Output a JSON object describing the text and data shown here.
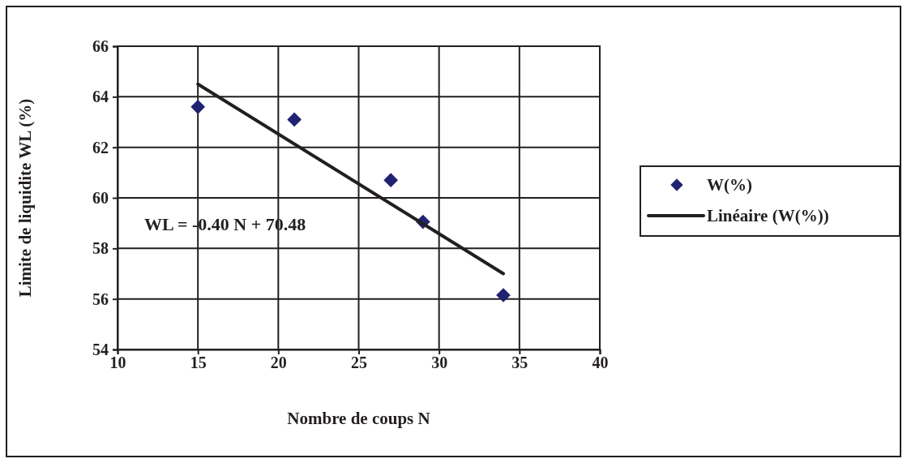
{
  "chart_data": {
    "type": "scatter",
    "xlabel": "Nombre de coups N",
    "ylabel": "Limite de liquidite WL (%)",
    "xlim": [
      10,
      40
    ],
    "xticks": [
      10,
      15,
      20,
      25,
      30,
      35,
      40
    ],
    "ylim": [
      54,
      66
    ],
    "yticks": [
      54,
      56,
      58,
      60,
      62,
      64,
      66
    ],
    "grid": true,
    "legend": "right",
    "marker": "diamond",
    "series": [
      {
        "name": "W(%)",
        "type": "scatter",
        "color": "#1f2370",
        "x": [
          15,
          21,
          27,
          29,
          34
        ],
        "values": [
          63.6,
          63.1,
          60.7,
          59.05,
          56.15
        ]
      },
      {
        "name": "Linéaire (W(%))",
        "type": "line",
        "color": "#231f20",
        "line_style": "solid",
        "marker": "none",
        "x": [
          15,
          34
        ],
        "values": [
          64.5,
          57.0
        ]
      }
    ],
    "annotations": [
      "WL = -0.40 N + 70.48"
    ]
  }
}
